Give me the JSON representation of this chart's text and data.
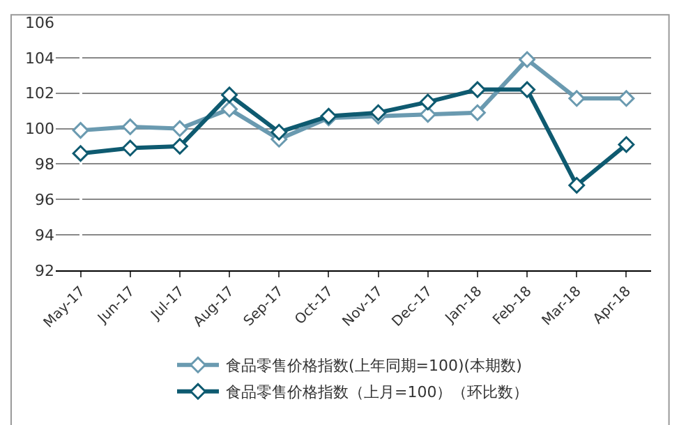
{
  "chart_data": {
    "type": "line",
    "categories": [
      "May-17",
      "Jun-17",
      "Jul-17",
      "Aug-17",
      "Sep-17",
      "Oct-17",
      "Nov-17",
      "Dec-17",
      "Jan-18",
      "Feb-18",
      "Mar-18",
      "Apr-18"
    ],
    "series": [
      {
        "name": "食品零售价格指数(上年同期=100)(本期数)",
        "color": "#6a9ab0",
        "values": [
          99.9,
          100.1,
          100.0,
          101.1,
          99.4,
          100.6,
          100.7,
          100.8,
          100.9,
          103.9,
          101.7,
          101.7
        ]
      },
      {
        "name": "食品零售价格指数（上月=100）（环比数）",
        "color": "#0e5a70",
        "values": [
          98.6,
          98.9,
          99.0,
          101.9,
          99.8,
          100.7,
          100.9,
          101.5,
          102.2,
          102.2,
          96.8,
          99.1
        ]
      }
    ],
    "ylim": [
      92,
      106
    ],
    "yticks": [
      92,
      94,
      96,
      98,
      100,
      102,
      104,
      106
    ],
    "grid": "y",
    "legend": "bottom",
    "marker": "diamond",
    "line_style": "solid"
  }
}
